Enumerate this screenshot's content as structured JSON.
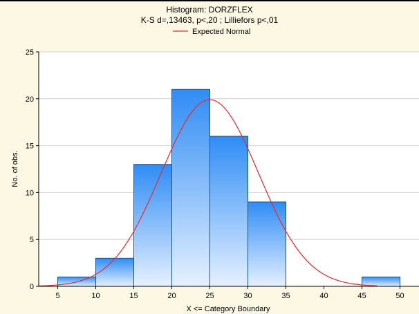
{
  "chart_data": {
    "type": "bar",
    "title": "Histogram: DORZFLEX",
    "subtitle": "K-S d=,13463, p<,20 ; Lilliefors p<,01",
    "legend": {
      "entries": [
        {
          "label": "Expected Normal",
          "color": "#e8282e"
        }
      ],
      "placement": "top-center"
    },
    "xlabel": "X <= Category Boundary",
    "ylabel": "No. of obs.",
    "xlim": [
      2.5,
      52.5
    ],
    "ylim": [
      0,
      25
    ],
    "x_ticks": [
      5,
      10,
      15,
      20,
      25,
      30,
      35,
      40,
      45,
      50
    ],
    "x_tick_labels": [
      "5",
      "10",
      "15",
      "20",
      "25",
      "30",
      "35",
      "40",
      "45",
      "50"
    ],
    "y_ticks": [
      0,
      5,
      10,
      15,
      20,
      25
    ],
    "y_tick_labels": [
      "0",
      "5",
      "10",
      "15",
      "20",
      "25"
    ],
    "grid": true,
    "bins": [
      {
        "from": 5,
        "to": 10,
        "count": 1
      },
      {
        "from": 10,
        "to": 15,
        "count": 3
      },
      {
        "from": 15,
        "to": 20,
        "count": 13
      },
      {
        "from": 20,
        "to": 25,
        "count": 21
      },
      {
        "from": 25,
        "to": 30,
        "count": 16
      },
      {
        "from": 30,
        "to": 35,
        "count": 9
      },
      {
        "from": 35,
        "to": 40,
        "count": 0
      },
      {
        "from": 40,
        "to": 45,
        "count": 0
      },
      {
        "from": 45,
        "to": 50,
        "count": 1
      }
    ],
    "expected_normal": {
      "mean": 25,
      "sd": 6.4,
      "peak": 19.9,
      "x_from": 2.5,
      "x_to": 47
    },
    "colors": {
      "bar_top": "#2f8cf5",
      "bar_bottom": "#e6f1ff",
      "bar_stroke": "#1b4f8a",
      "curve": "#e8282e",
      "grid": "#d4d4d4",
      "plot_background": "#ffffff",
      "figure_background": "#fdf8e4"
    }
  }
}
